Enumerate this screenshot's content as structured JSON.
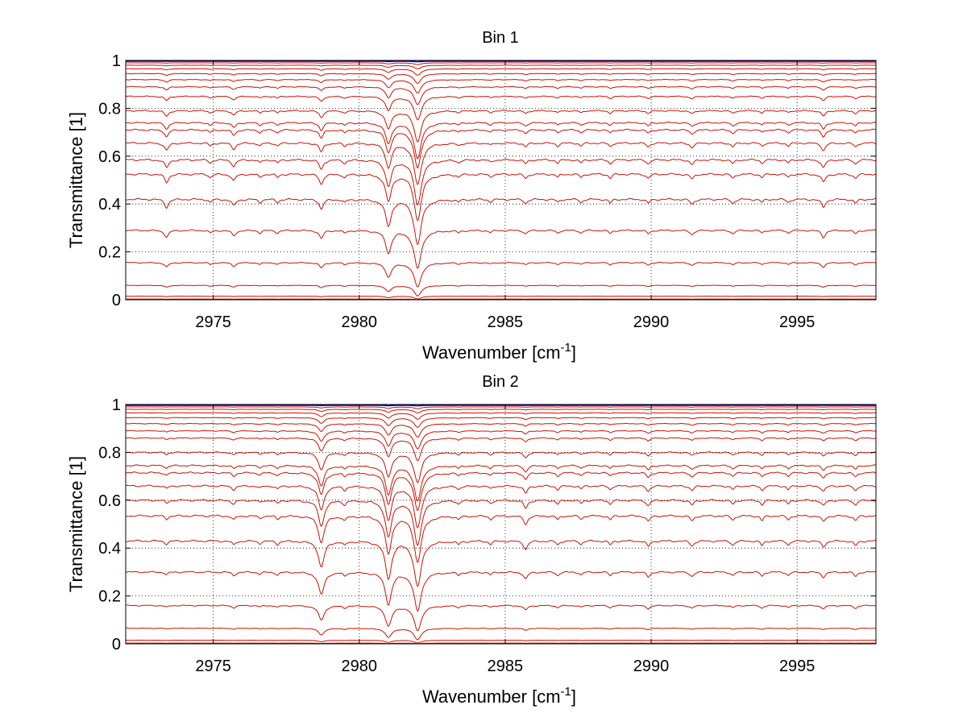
{
  "chart_data": [
    {
      "type": "line",
      "title": "Bin 1",
      "xlabel": "Wavenumber [cm",
      "xlabel_sup": "-1",
      "xlabel_end": "]",
      "ylabel": "Transmittance [1]",
      "xlim": [
        2972,
        2997.7
      ],
      "ylim": [
        0,
        1
      ],
      "xticks": [
        2975,
        2980,
        2985,
        2990,
        2995
      ],
      "xtick_labels": [
        "2975",
        "2980",
        "2985",
        "2990",
        "2995"
      ],
      "yticks": [
        0,
        0.2,
        0.4,
        0.6,
        0.8,
        1
      ],
      "ytick_labels": [
        "0",
        "0.2",
        "0.4",
        "0.6",
        "0.8",
        "1"
      ],
      "grid": true,
      "series_color": "#cc1100",
      "top_series_color": "#0000cc",
      "baselines": [
        0.997,
        0.99,
        0.98,
        0.965,
        0.945,
        0.92,
        0.89,
        0.85,
        0.79,
        0.74,
        0.71,
        0.655,
        0.585,
        0.525,
        0.42,
        0.29,
        0.155,
        0.06,
        0.015,
        0.003
      ],
      "absorption_lines": [
        {
          "x": 2973.4,
          "depth": 0.1,
          "width": 0.08
        },
        {
          "x": 2974.9,
          "depth": 0.04,
          "width": 0.06
        },
        {
          "x": 2975.7,
          "depth": 0.08,
          "width": 0.08
        },
        {
          "x": 2976.6,
          "depth": 0.04,
          "width": 0.06
        },
        {
          "x": 2977.2,
          "depth": 0.04,
          "width": 0.06
        },
        {
          "x": 2978.7,
          "depth": 0.12,
          "width": 0.08
        },
        {
          "x": 2979.5,
          "depth": 0.04,
          "width": 0.06
        },
        {
          "x": 2981.0,
          "depth": 0.32,
          "width": 0.12
        },
        {
          "x": 2982.0,
          "depth": 0.55,
          "width": 0.15
        },
        {
          "x": 2983.4,
          "depth": 0.03,
          "width": 0.06
        },
        {
          "x": 2984.5,
          "depth": 0.03,
          "width": 0.06
        },
        {
          "x": 2985.7,
          "depth": 0.05,
          "width": 0.07
        },
        {
          "x": 2986.8,
          "depth": 0.04,
          "width": 0.06
        },
        {
          "x": 2987.6,
          "depth": 0.04,
          "width": 0.06
        },
        {
          "x": 2988.6,
          "depth": 0.05,
          "width": 0.06
        },
        {
          "x": 2989.9,
          "depth": 0.05,
          "width": 0.07
        },
        {
          "x": 2991.4,
          "depth": 0.06,
          "width": 0.08
        },
        {
          "x": 2992.8,
          "depth": 0.05,
          "width": 0.07
        },
        {
          "x": 2993.8,
          "depth": 0.04,
          "width": 0.06
        },
        {
          "x": 2994.7,
          "depth": 0.04,
          "width": 0.06
        },
        {
          "x": 2995.9,
          "depth": 0.1,
          "width": 0.08
        },
        {
          "x": 2997.0,
          "depth": 0.05,
          "width": 0.07
        }
      ]
    },
    {
      "type": "line",
      "title": "Bin 2",
      "xlabel": "Wavenumber [cm",
      "xlabel_sup": "-1",
      "xlabel_end": "]",
      "ylabel": "Transmittance [1]",
      "xlim": [
        2972,
        2997.7
      ],
      "ylim": [
        0,
        1
      ],
      "xticks": [
        2975,
        2980,
        2985,
        2990,
        2995
      ],
      "xtick_labels": [
        "2975",
        "2980",
        "2985",
        "2990",
        "2995"
      ],
      "yticks": [
        0,
        0.2,
        0.4,
        0.6,
        0.8,
        1
      ],
      "ytick_labels": [
        "0",
        "0.2",
        "0.4",
        "0.6",
        "0.8",
        "1"
      ],
      "grid": true,
      "series_color": "#cc1100",
      "top_series_color": "#0000cc",
      "baselines": [
        0.997,
        0.99,
        0.98,
        0.965,
        0.945,
        0.92,
        0.89,
        0.86,
        0.8,
        0.745,
        0.715,
        0.66,
        0.6,
        0.535,
        0.43,
        0.3,
        0.16,
        0.065,
        0.015,
        0.003
      ],
      "absorption_lines": [
        {
          "x": 2973.4,
          "depth": 0.04,
          "width": 0.06
        },
        {
          "x": 2975.7,
          "depth": 0.05,
          "width": 0.07
        },
        {
          "x": 2976.6,
          "depth": 0.03,
          "width": 0.06
        },
        {
          "x": 2977.2,
          "depth": 0.04,
          "width": 0.06
        },
        {
          "x": 2978.7,
          "depth": 0.32,
          "width": 0.12
        },
        {
          "x": 2979.5,
          "depth": 0.05,
          "width": 0.06
        },
        {
          "x": 2981.0,
          "depth": 0.45,
          "width": 0.13
        },
        {
          "x": 2982.0,
          "depth": 0.55,
          "width": 0.15
        },
        {
          "x": 2983.4,
          "depth": 0.04,
          "width": 0.06
        },
        {
          "x": 2984.5,
          "depth": 0.04,
          "width": 0.06
        },
        {
          "x": 2985.7,
          "depth": 0.1,
          "width": 0.08
        },
        {
          "x": 2986.8,
          "depth": 0.05,
          "width": 0.06
        },
        {
          "x": 2987.6,
          "depth": 0.04,
          "width": 0.06
        },
        {
          "x": 2988.6,
          "depth": 0.05,
          "width": 0.06
        },
        {
          "x": 2989.9,
          "depth": 0.07,
          "width": 0.07
        },
        {
          "x": 2991.4,
          "depth": 0.06,
          "width": 0.08
        },
        {
          "x": 2992.8,
          "depth": 0.05,
          "width": 0.07
        },
        {
          "x": 2993.8,
          "depth": 0.06,
          "width": 0.06
        },
        {
          "x": 2994.7,
          "depth": 0.05,
          "width": 0.06
        },
        {
          "x": 2995.9,
          "depth": 0.07,
          "width": 0.08
        },
        {
          "x": 2997.0,
          "depth": 0.06,
          "width": 0.07
        }
      ]
    }
  ]
}
